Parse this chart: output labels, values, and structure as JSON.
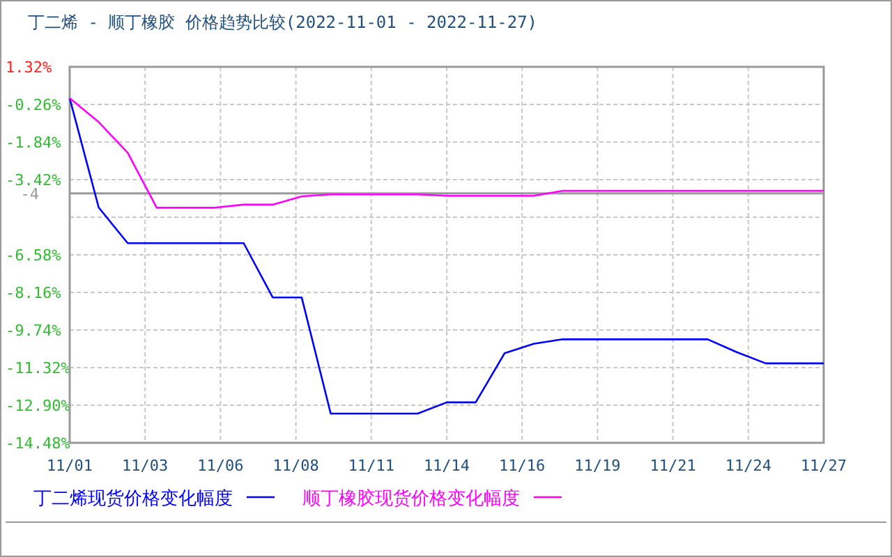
{
  "chart_data": {
    "type": "line",
    "title": "丁二烯 - 顺丁橡胶 价格趋势比较(2022-11-01 - 2022-11-27)",
    "x": [
      "2022-11-01",
      "2022-11-02",
      "2022-11-03",
      "2022-11-04",
      "2022-11-05",
      "2022-11-06",
      "2022-11-07",
      "2022-11-08",
      "2022-11-09",
      "2022-11-10",
      "2022-11-11",
      "2022-11-12",
      "2022-11-13",
      "2022-11-14",
      "2022-11-15",
      "2022-11-16",
      "2022-11-17",
      "2022-11-18",
      "2022-11-19",
      "2022-11-20",
      "2022-11-21",
      "2022-11-22",
      "2022-11-23",
      "2022-11-24",
      "2022-11-25",
      "2022-11-26",
      "2022-11-27"
    ],
    "series": [
      {
        "name": "丁二烯现货价格变化幅度",
        "color": "#0000ff",
        "values": [
          0,
          -4.59,
          -6.09,
          -6.09,
          -6.09,
          -6.09,
          -6.09,
          -8.37,
          -8.37,
          -13.25,
          -13.25,
          -13.25,
          -13.25,
          -12.78,
          -12.78,
          -10.71,
          -10.32,
          -10.13,
          -10.13,
          -10.13,
          -10.13,
          -10.13,
          -10.13,
          -10.67,
          -11.14,
          -11.14,
          -11.14
        ]
      },
      {
        "name": "顺丁橡胶现货价格变化幅度",
        "color": "#ff00ff",
        "values": [
          0,
          -1.0,
          -2.29,
          -4.6,
          -4.6,
          -4.6,
          -4.47,
          -4.47,
          -4.12,
          -4.04,
          -4.04,
          -4.04,
          -4.04,
          -4.1,
          -4.1,
          -4.1,
          -4.1,
          -3.89,
          -3.89,
          -3.89,
          -3.89,
          -3.89,
          -3.89,
          -3.89,
          -3.89,
          -3.89,
          -3.89
        ]
      }
    ],
    "xlim": [
      "2022-11-01",
      "2022-11-27"
    ],
    "xticks": [
      {
        "value": "2022-11-01",
        "label": "11/01"
      },
      {
        "value": "2022-11-03T14:24",
        "label": "11/03"
      },
      {
        "value": "2022-11-06T04:48",
        "label": "11/06"
      },
      {
        "value": "2022-11-08T19:12",
        "label": "11/08"
      },
      {
        "value": "2022-11-11T09:36",
        "label": "11/11"
      },
      {
        "value": "2022-11-14",
        "label": "11/14"
      },
      {
        "value": "2022-11-16T14:24",
        "label": "11/16"
      },
      {
        "value": "2022-11-19T04:48",
        "label": "11/19"
      },
      {
        "value": "2022-11-21T19:12",
        "label": "11/21"
      },
      {
        "value": "2022-11-24T09:36",
        "label": "11/24"
      },
      {
        "value": "2022-11-27",
        "label": "11/27"
      }
    ],
    "ylim": [
      -14.48,
      1.32
    ],
    "yticks": [
      {
        "value": 1.32,
        "label": "1.32%"
      },
      {
        "value": -0.26,
        "label": "-0.26%"
      },
      {
        "value": -1.84,
        "label": "-1.84%"
      },
      {
        "value": -3.42,
        "label": "-3.42%"
      },
      {
        "value": -5,
        "label": null
      },
      {
        "value": -6.58,
        "label": "-6.58%"
      },
      {
        "value": -8.16,
        "label": "-8.16%"
      },
      {
        "value": -9.74,
        "label": "-9.74%"
      },
      {
        "value": -11.32,
        "label": "-11.32%"
      },
      {
        "value": -12.9,
        "label": "-12.90%"
      },
      {
        "value": -14.48,
        "label": "-14.48%"
      }
    ],
    "ref_lines": [
      {
        "axis": "y",
        "value": -4,
        "label": "-4",
        "color": "#999999"
      }
    ],
    "grid": true,
    "legend": "bottom",
    "line_style": "solid",
    "marker": "none"
  }
}
